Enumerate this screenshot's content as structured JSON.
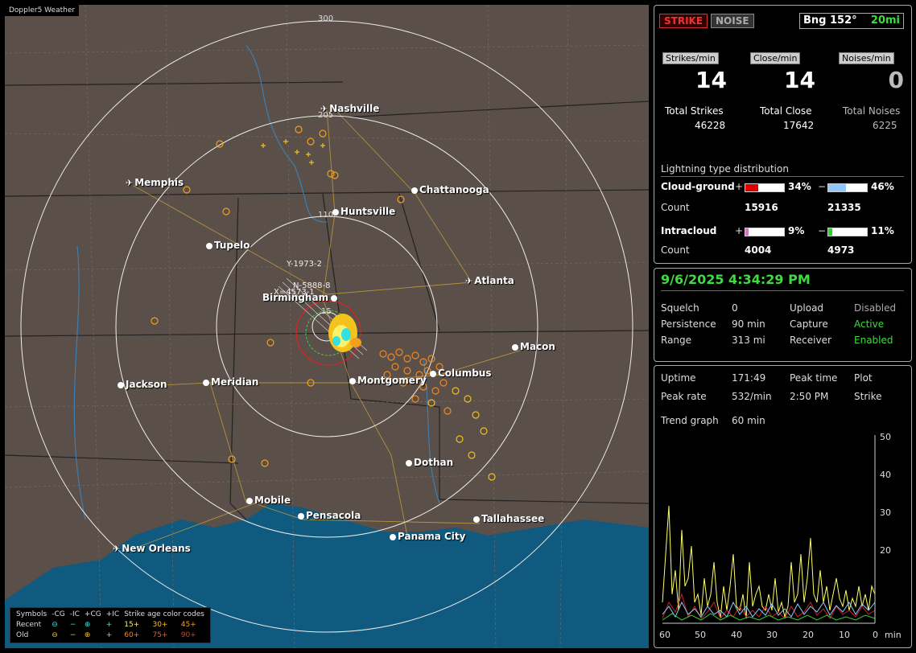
{
  "app": {
    "title": "Doppler5 Weather"
  },
  "map": {
    "range_labels": [
      "300",
      "205",
      "110",
      "15"
    ],
    "storm_labels": [
      "Y-1973-2",
      "N-5888-8",
      "X=4573-1"
    ],
    "cities": [
      {
        "name": "Nashville",
        "type": "airport"
      },
      {
        "name": "Memphis",
        "type": "airport"
      },
      {
        "name": "Chattanooga",
        "type": "city"
      },
      {
        "name": "Huntsville",
        "type": "city"
      },
      {
        "name": "Tupelo",
        "type": "city"
      },
      {
        "name": "Atlanta",
        "type": "airport"
      },
      {
        "name": "Birmingham",
        "type": "city"
      },
      {
        "name": "Macon",
        "type": "city"
      },
      {
        "name": "Jackson",
        "type": "city"
      },
      {
        "name": "Meridian",
        "type": "city"
      },
      {
        "name": "Montgomery",
        "type": "city"
      },
      {
        "name": "Columbus",
        "type": "city"
      },
      {
        "name": "Dothan",
        "type": "city"
      },
      {
        "name": "Mobile",
        "type": "city"
      },
      {
        "name": "Pensacola",
        "type": "city"
      },
      {
        "name": "Tallahassee",
        "type": "city"
      },
      {
        "name": "Panama City",
        "type": "city"
      },
      {
        "name": "New Orleans",
        "type": "airport"
      }
    ],
    "legend": {
      "header": [
        "Symbols",
        "-CG",
        "-IC",
        "+CG",
        "+IC",
        "Strike age color codes"
      ],
      "recent": {
        "label": "Recent",
        "symbols": [
          "⊖",
          "−",
          "⊕",
          "+"
        ],
        "ages": [
          "15+",
          "30+",
          "45+"
        ]
      },
      "old": {
        "label": "Old",
        "symbols": [
          "⊖",
          "−",
          "⊕",
          "+"
        ],
        "ages": [
          "60+",
          "75+",
          "90+"
        ]
      }
    }
  },
  "status": {
    "strike_label": "STRIKE",
    "noise_label": "NOISE",
    "bearing": "Bng 152°",
    "distance": "20mi",
    "rate_labels": [
      "Strikes/min",
      "Close/min",
      "Noises/min"
    ],
    "rates": [
      "14",
      "14",
      "0"
    ],
    "total_labels": [
      "Total Strikes",
      "Total Close",
      "Total Noises"
    ],
    "totals": [
      "46228",
      "17642",
      "6225"
    ],
    "distribution_title": "Lightning type distribution",
    "cloud_ground": {
      "label": "Cloud-ground",
      "pos_pct": 34,
      "pos_pct_label": "34%",
      "neg_pct": 46,
      "neg_pct_label": "46%",
      "pos_count": "15916",
      "neg_count": "21335"
    },
    "intracloud": {
      "label": "Intracloud",
      "pos_pct": 9,
      "pos_pct_label": "9%",
      "neg_pct": 11,
      "neg_pct_label": "11%",
      "pos_count": "4004",
      "neg_count": "4973"
    },
    "count_label": "Count",
    "plus": "+",
    "minus": "−"
  },
  "settings": {
    "datetime": "9/6/2025 4:34:29 PM",
    "squelch_label": "Squelch",
    "squelch": "0",
    "persistence_label": "Persistence",
    "persistence": "90 min",
    "range_label": "Range",
    "range": "313 mi",
    "upload_label": "Upload",
    "upload": "Disabled",
    "capture_label": "Capture",
    "capture": "Active",
    "receiver_label": "Receiver",
    "receiver": "Enabled"
  },
  "trend": {
    "uptime_label": "Uptime",
    "uptime": "171:49",
    "peak_time_label": "Peak time",
    "peak_time": "2:50 PM",
    "plot_label": "Plot",
    "plot": "Strike",
    "peak_rate_label": "Peak rate",
    "peak_rate": "532/min",
    "graph_label": "Trend graph",
    "graph_span": "60 min",
    "y_ticks": [
      "50",
      "40",
      "30",
      "20"
    ],
    "x_ticks": [
      "60",
      "50",
      "40",
      "30",
      "20",
      "10",
      "0"
    ],
    "x_unit": "min"
  },
  "colors": {
    "strike": "#cc2222",
    "cg_pos_bar": "#e00000",
    "cg_neg_bar": "#8ec8ff",
    "ic_pos_bar": "#e070c0",
    "ic_neg_bar": "#30d030",
    "datetime": "#3fdc3f"
  }
}
